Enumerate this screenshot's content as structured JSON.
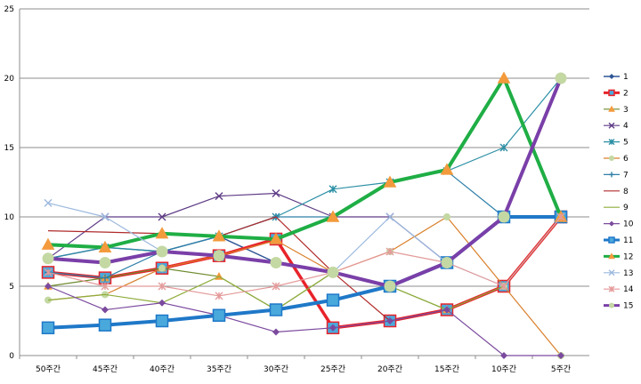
{
  "chart_data": {
    "type": "line",
    "title": "",
    "xlabel": "",
    "ylabel": "",
    "categories": [
      "50주간",
      "45주간",
      "40주간",
      "35주간",
      "30주간",
      "25주간",
      "20주간",
      "15주간",
      "10주간",
      "5주간"
    ],
    "ylim": [
      0,
      25
    ],
    "yticks": [
      "0",
      "5",
      "10",
      "15",
      "20",
      "25"
    ],
    "grid": "horizontal",
    "legend": "right",
    "series": [
      {
        "name": "1",
        "color": "#2f5597",
        "marker": "diamond",
        "width": 1.4,
        "values": [
          7,
          7.8,
          7.5,
          8.6,
          6.7,
          6,
          5,
          6.7,
          10,
          10
        ]
      },
      {
        "name": "2",
        "color": "#e8232a",
        "marker": "square",
        "width": 3.5,
        "values": [
          6,
          5.6,
          6.3,
          7.2,
          8.4,
          2,
          2.5,
          3.3,
          5,
          10
        ]
      },
      {
        "name": "3",
        "color": "#6e8b2d",
        "marker": "triangle",
        "width": 1.2,
        "values": [
          5,
          5.6,
          6.3,
          5.7,
          3.3,
          6,
          5,
          3.3,
          5,
          10
        ]
      },
      {
        "name": "4",
        "color": "#5f3c86",
        "marker": "x",
        "width": 1.2,
        "values": [
          7,
          10,
          10,
          11.5,
          11.7,
          10,
          10,
          6.7,
          10,
          20
        ]
      },
      {
        "name": "5",
        "color": "#2b8fa5",
        "marker": "star",
        "width": 1.2,
        "values": [
          7,
          7.8,
          7.5,
          8.6,
          10,
          12,
          12.5,
          13.3,
          15,
          20
        ]
      },
      {
        "name": "6",
        "color": "#d97f2a",
        "marker": "circle",
        "width": 1.2,
        "values": [
          4,
          4.4,
          6.3,
          7.2,
          8.3,
          6,
          7.5,
          10,
          5,
          0
        ]
      },
      {
        "name": "7",
        "color": "#2e7fa8",
        "marker": "plus",
        "width": 1.2,
        "values": [
          6,
          5.6,
          7.5,
          8.6,
          10,
          10,
          12.5,
          13.3,
          10,
          10
        ]
      },
      {
        "name": "8",
        "color": "#b02b2b",
        "marker": "none",
        "width": 1.2,
        "values": [
          9,
          8.9,
          8.8,
          8.6,
          10,
          6,
          2.5,
          3.3,
          5,
          10
        ]
      },
      {
        "name": "9",
        "color": "#8fae3c",
        "marker": "none",
        "width": 1.2,
        "values": [
          4,
          4.4,
          3.8,
          5.7,
          3.3,
          6,
          5,
          3.3,
          5,
          10
        ]
      },
      {
        "name": "10",
        "color": "#7b4a9e",
        "marker": "diamond",
        "width": 1.2,
        "values": [
          5,
          3.3,
          3.8,
          2.9,
          1.7,
          2,
          2.5,
          3.3,
          0,
          0
        ]
      },
      {
        "name": "11",
        "color": "#1f78c8",
        "marker": "square",
        "width": 4,
        "values": [
          2,
          2.2,
          2.5,
          2.9,
          3.3,
          4,
          5,
          6.7,
          10,
          10
        ]
      },
      {
        "name": "12",
        "color": "#1fae45",
        "marker": "triangle",
        "width": 4,
        "values": [
          8,
          7.8,
          8.8,
          8.6,
          8.4,
          10,
          12.5,
          13.4,
          20,
          10
        ]
      },
      {
        "name": "13",
        "color": "#9cb9de",
        "marker": "x",
        "width": 1.2,
        "values": [
          11,
          10,
          7.5,
          7.1,
          6.7,
          6,
          10,
          6.7,
          5,
          10
        ]
      },
      {
        "name": "14",
        "color": "#e49a9a",
        "marker": "star",
        "width": 1.2,
        "values": [
          6,
          5,
          5,
          4.3,
          5,
          6,
          7.5,
          6.7,
          5,
          10
        ]
      },
      {
        "name": "15",
        "color": "#7a3fa8",
        "marker": "circle",
        "width": 4,
        "values": [
          7,
          6.7,
          7.5,
          7.2,
          6.7,
          6,
          5,
          6.7,
          10,
          20
        ]
      }
    ],
    "marker_fills": {
      "triangle": "#f39a3c",
      "circle": "#c4d8a3",
      "square": "#4aa9dc"
    }
  }
}
